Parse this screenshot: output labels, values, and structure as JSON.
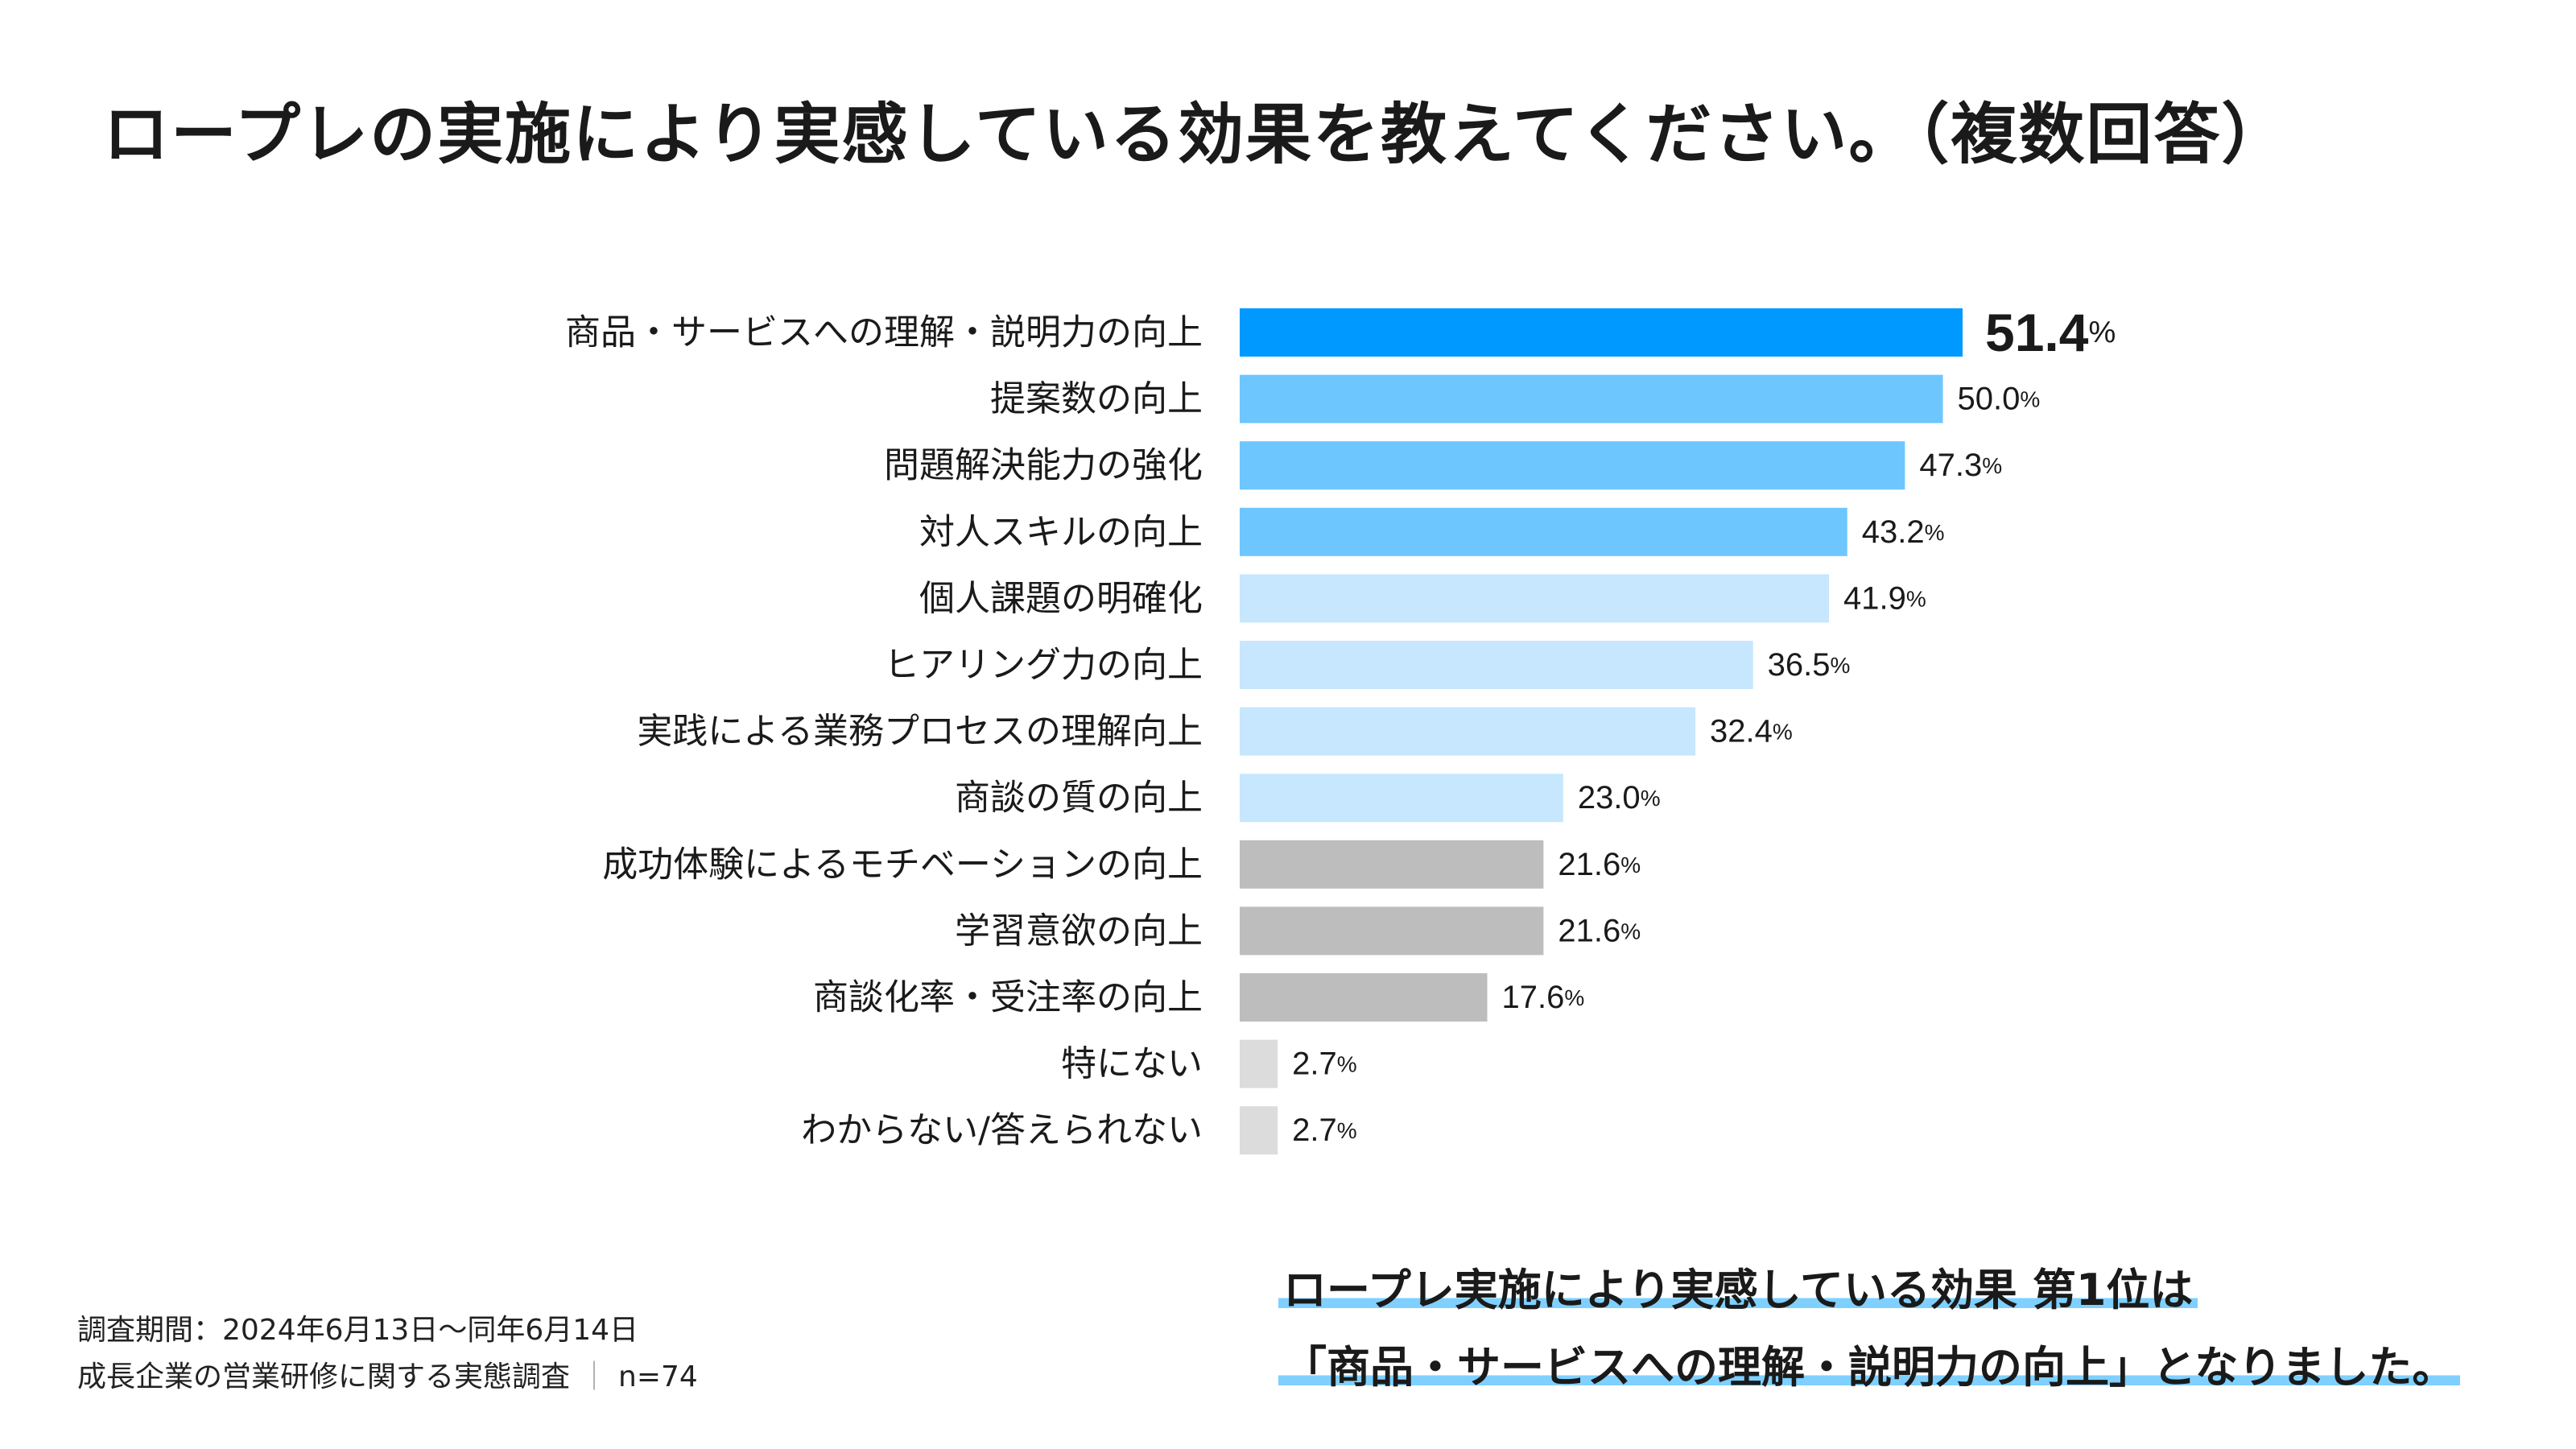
{
  "title": "ロープレの実施により実感している効果を教えてください。（複数回答）",
  "chart_data": {
    "type": "bar",
    "orientation": "horizontal",
    "title": "ロープレの実施により実感している効果を教えてください。（複数回答）",
    "categories": [
      "商品・サービスへの理解・説明力の向上",
      "提案数の向上",
      "問題解決能力の強化",
      "対人スキルの向上",
      "個人課題の明確化",
      "ヒアリング力の向上",
      "実践による業務プロセスの理解向上",
      "商談の質の向上",
      "成功体験によるモチベーションの向上",
      "学習意欲の向上",
      "商談化率・受注率の向上",
      "特にない",
      "わからない/答えられない"
    ],
    "values": [
      51.4,
      50.0,
      47.3,
      43.2,
      41.9,
      36.5,
      32.4,
      23.0,
      21.6,
      21.6,
      17.6,
      2.7,
      2.7
    ],
    "value_labels": [
      "51.4",
      "50.0",
      "47.3",
      "43.2",
      "41.9",
      "36.5",
      "32.4",
      "23.0",
      "21.6",
      "21.6",
      "17.6",
      "2.7",
      "2.7"
    ],
    "unit": "%",
    "bar_colors": [
      "#0099ff",
      "#6ec6ff",
      "#6ec6ff",
      "#6ec6ff",
      "#c6e7fd",
      "#c6e7fd",
      "#c6e7fd",
      "#c6e7fd",
      "#bdbdbd",
      "#bdbdbd",
      "#bdbdbd",
      "#dcdcdc",
      "#dcdcdc"
    ],
    "highlight_color": "#1a9cf0",
    "xlim": [
      0,
      51.4
    ],
    "grid": false,
    "legend": "none"
  },
  "footnote": {
    "line1": "調査期間：2024年6月13日〜同年6月14日",
    "line2_main": "成長企業の営業研修に関する実態調査",
    "line2_sep": "｜",
    "line2_n": "n=74"
  },
  "summary": {
    "line1": "ロープレ実施により実感している効果 第1位は",
    "line2": "「商品・サービスへの理解・説明力の向上」となりました。"
  }
}
